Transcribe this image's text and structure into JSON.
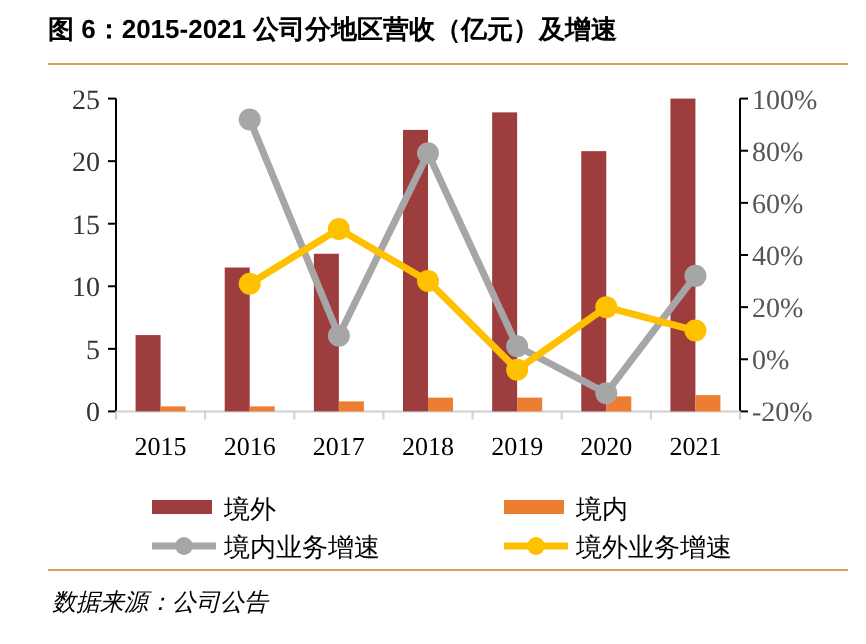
{
  "chart_data": {
    "type": "bar",
    "title": "图 6：2015-2021 公司分地区营收（亿元）及增速",
    "categories": [
      "2015",
      "2016",
      "2017",
      "2018",
      "2019",
      "2020",
      "2021"
    ],
    "series": [
      {
        "name": "境外",
        "color": "#9e3d3d",
        "values": [
          6.1,
          11.5,
          12.6,
          22.5,
          23.9,
          20.8,
          25.0
        ]
      },
      {
        "name": "境内",
        "color": "#ed7d31",
        "values": [
          0.4,
          0.4,
          0.8,
          1.1,
          1.1,
          1.2,
          1.3
        ]
      },
      {
        "name": "境内业务增速",
        "type": "line",
        "axis": "y2",
        "color": "#a6a6a6",
        "values": [
          null,
          92,
          9,
          79,
          5,
          -13,
          32
        ]
      },
      {
        "name": "境外业务增速",
        "type": "line",
        "axis": "y2",
        "color": "#ffc000",
        "values": [
          null,
          29,
          50,
          30,
          -4,
          20,
          11
        ]
      }
    ],
    "ylim": [
      0,
      25
    ],
    "yticks": [
      0,
      5,
      10,
      15,
      20,
      25
    ],
    "y2lim": [
      -20,
      100
    ],
    "y2ticks": [
      {
        "value": -20,
        "label": "-20%"
      },
      {
        "value": 0,
        "label": "0%"
      },
      {
        "value": 20,
        "label": "20%"
      },
      {
        "value": 40,
        "label": "40%"
      },
      {
        "value": 60,
        "label": "60%"
      },
      {
        "value": 80,
        "label": "80%"
      },
      {
        "value": 100,
        "label": "100%"
      }
    ],
    "marker": "circle",
    "legend": "bottom",
    "annotations": [
      "数据来源：公司公告"
    ]
  }
}
